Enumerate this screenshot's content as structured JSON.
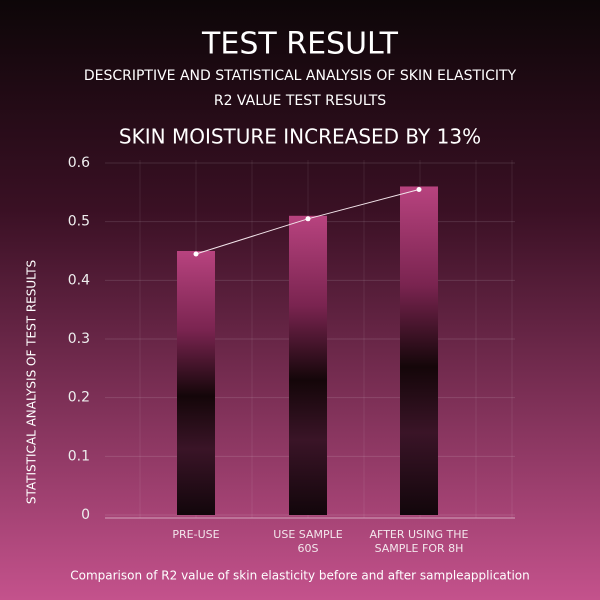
{
  "chart_data": {
    "type": "bar",
    "title": "TEST RESULT",
    "subtitle": [
      "DESCRIPTIVE AND STATISTICAL ANALYSIS OF SKIN ELASTICITY",
      "R2 VALUE TEST RESULTS"
    ],
    "headline": "SKIN MOISTURE INCREASED BY 13%",
    "y_label": "STATISTICAL ANALYSIS OF TEST RESULTS",
    "caption": "Comparison of R2 value of skin elasticity before and after sampleapplication",
    "categories": [
      "PRE-USE",
      "USE SAMPLE\n60S",
      "AFTER USING THE\nSAMPLE FOR 8H"
    ],
    "values": [
      0.45,
      0.51,
      0.56
    ],
    "line": true,
    "ylim": [
      0,
      0.6
    ],
    "yticks": [
      0,
      0.1,
      0.2,
      0.3,
      0.4,
      0.5,
      0.6
    ],
    "grid": true
  }
}
